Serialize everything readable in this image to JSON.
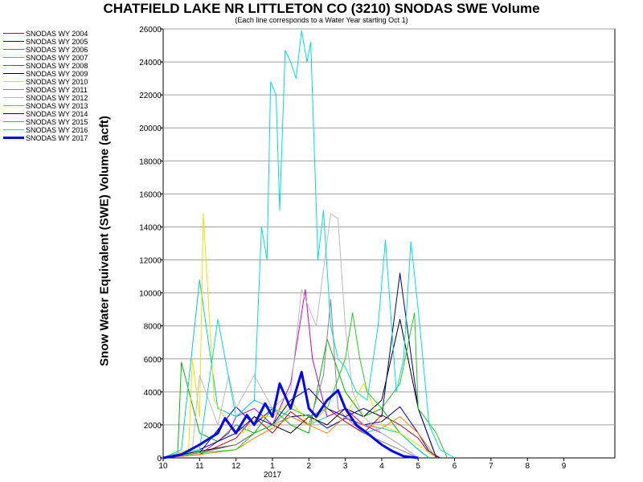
{
  "chart_data": {
    "type": "line",
    "title": "CHATFIELD LAKE NR LITTLETON CO (3210) SNODAS SWE Volume",
    "subtitle": "(Each line corresponds to a Water Year starting Oct 1)",
    "ylabel": "Snow Water Equivalent (SWE) Volume (acft)",
    "xlabel": "",
    "ylim": [
      0,
      26000
    ],
    "y_ticks": [
      0,
      2000,
      4000,
      6000,
      8000,
      10000,
      12000,
      14000,
      16000,
      18000,
      20000,
      22000,
      24000,
      26000
    ],
    "xlim": [
      0,
      12.4
    ],
    "x_ticks": [
      {
        "pos": 0,
        "label": "10"
      },
      {
        "pos": 1,
        "label": "11"
      },
      {
        "pos": 2,
        "label": "12"
      },
      {
        "pos": 3,
        "label": "1"
      },
      {
        "pos": 4,
        "label": "2"
      },
      {
        "pos": 5,
        "label": "3"
      },
      {
        "pos": 6,
        "label": "4"
      },
      {
        "pos": 7,
        "label": "5"
      },
      {
        "pos": 8,
        "label": "6"
      },
      {
        "pos": 9,
        "label": "7"
      },
      {
        "pos": 10,
        "label": "8"
      },
      {
        "pos": 11,
        "label": "9"
      }
    ],
    "x_sublabel": {
      "pos": 3,
      "label": "2017"
    },
    "grid": true,
    "legend_position": "left",
    "series": [
      {
        "name": "SNODAS WY 2004",
        "color": "#cc0000",
        "x": [
          0,
          1,
          2,
          2.5,
          3,
          3.5,
          4,
          4.5,
          5,
          5.5,
          6,
          6.5,
          7,
          7.3,
          7.6
        ],
        "values": [
          0,
          200,
          1200,
          2500,
          1500,
          2800,
          2000,
          3000,
          2200,
          1500,
          2600,
          2000,
          1200,
          300,
          0
        ]
      },
      {
        "name": "SNODAS WY 2005",
        "color": "#0000cc",
        "x": [
          0,
          1,
          2,
          2.5,
          3,
          3.5,
          4,
          4.5,
          5,
          5.5,
          6,
          6.5,
          7,
          7.3,
          7.6
        ],
        "values": [
          0,
          300,
          3100,
          2000,
          3000,
          2500,
          2600,
          1800,
          2400,
          2000,
          2200,
          3100,
          1500,
          400,
          0
        ]
      },
      {
        "name": "SNODAS WY 2006",
        "color": "#00bb00",
        "x": [
          0,
          0.4,
          0.5,
          1,
          1.5,
          2,
          2.5,
          3,
          3.5,
          4,
          4.5,
          5,
          5.5,
          6,
          6.5,
          7,
          7.3
        ],
        "values": [
          0,
          300,
          5800,
          1500,
          1000,
          2000,
          1500,
          3000,
          2000,
          1500,
          7200,
          4000,
          2500,
          3000,
          1500,
          500,
          0
        ]
      },
      {
        "name": "SNODAS WY 2007",
        "color": "#00cccc",
        "x": [
          0,
          0.5,
          1,
          1.5,
          2,
          2.5,
          3,
          3.5,
          4,
          4.5,
          5,
          5.5,
          6,
          6.5,
          7,
          7.3
        ],
        "values": [
          0,
          500,
          10800,
          3000,
          2500,
          3500,
          3000,
          2500,
          2000,
          2500,
          3000,
          1500,
          1800,
          1500,
          500,
          0
        ]
      },
      {
        "name": "SNODAS WY 2008",
        "color": "#cc00cc",
        "x": [
          0,
          1,
          1.8,
          2,
          2.5,
          3,
          3.5,
          3.9,
          4.1,
          4.5,
          5,
          5.5,
          6,
          6.5,
          7
        ],
        "values": [
          0,
          200,
          1500,
          2500,
          3000,
          2000,
          4500,
          10200,
          6000,
          2500,
          3000,
          2000,
          1500,
          800,
          0
        ]
      },
      {
        "name": "SNODAS WY 2009",
        "color": "#000000",
        "x": [
          0,
          1,
          2,
          2.5,
          3,
          3.5,
          4,
          4.5,
          5,
          5.5,
          6,
          6.5,
          7,
          7.5
        ],
        "values": [
          0,
          400,
          800,
          1500,
          2000,
          1500,
          2500,
          2000,
          3000,
          2500,
          3500,
          8400,
          3000,
          0
        ]
      },
      {
        "name": "SNODAS WY 2010",
        "color": "#e6e600",
        "x": [
          0,
          0.7,
          0.8,
          1,
          1.1,
          1.4,
          1.8,
          2.2,
          2.6,
          3,
          3.5,
          4,
          4.5,
          5,
          5.5,
          6,
          6.5,
          7,
          7.5
        ],
        "values": [
          0,
          500,
          6000,
          2500,
          14800,
          3500,
          2000,
          1500,
          2500,
          2500,
          3500,
          2000,
          3000,
          2500,
          4500,
          2000,
          1500,
          800,
          0
        ]
      },
      {
        "name": "SNODAS WY 2011",
        "color": "#888888",
        "x": [
          0,
          1,
          2,
          2.5,
          3,
          3.5,
          4,
          4.4,
          4.6,
          4.8,
          5,
          5.5,
          6,
          6.5,
          7
        ],
        "values": [
          0,
          300,
          800,
          1500,
          2000,
          2500,
          2000,
          5000,
          9600,
          3000,
          2500,
          1500,
          1000,
          500,
          0
        ]
      },
      {
        "name": "SNODAS WY 2012",
        "color": "#bbbbbb",
        "x": [
          0,
          0.8,
          1,
          1.5,
          1.8,
          2,
          2.5,
          3,
          3.5,
          3.8,
          4.2,
          4.6,
          4.8,
          5,
          5.2,
          5.5,
          6,
          6.5,
          7
        ],
        "values": [
          0,
          500,
          5000,
          2000,
          5000,
          3000,
          5000,
          3000,
          4000,
          10200,
          8000,
          14800,
          14500,
          8000,
          4000,
          2500,
          1500,
          800,
          0
        ]
      },
      {
        "name": "SNODAS WY 2013",
        "color": "#ff8800",
        "x": [
          0,
          1,
          2,
          2.5,
          3,
          3.5,
          4,
          4.5,
          5,
          5.5,
          6,
          6.5,
          7,
          7.5
        ],
        "values": [
          0,
          200,
          500,
          1200,
          1800,
          2500,
          2000,
          1500,
          2500,
          2000,
          1800,
          2500,
          1500,
          0
        ]
      },
      {
        "name": "SNODAS WY 2014",
        "color": "#000088",
        "x": [
          0,
          1,
          1.5,
          2,
          2.5,
          3,
          3.5,
          4,
          4.5,
          5,
          5.5,
          6,
          6.5,
          7,
          7.5
        ],
        "values": [
          0,
          500,
          1000,
          1500,
          2500,
          2000,
          3500,
          4200,
          3000,
          2500,
          3000,
          2500,
          11200,
          3000,
          0
        ]
      },
      {
        "name": "SNODAS WY 2015",
        "color": "#22cc22",
        "x": [
          0,
          1,
          2,
          2.5,
          3,
          3.5,
          4,
          4.5,
          5,
          5.2,
          5.4,
          5.6,
          6,
          6.5,
          6.9,
          7,
          7.5,
          7.8
        ],
        "values": [
          0,
          300,
          500,
          1500,
          2000,
          3000,
          2500,
          3000,
          6000,
          8800,
          6000,
          4000,
          3000,
          4500,
          8800,
          3000,
          1500,
          0
        ]
      },
      {
        "name": "SNODAS WY 2016",
        "color": "#00dddd",
        "x": [
          0,
          1,
          1.5,
          2,
          2.5,
          2.7,
          2.85,
          2.95,
          3.1,
          3.2,
          3.35,
          3.5,
          3.65,
          3.8,
          3.95,
          4.05,
          4.25,
          4.4,
          4.6,
          4.8,
          5,
          5.3,
          5.6,
          5.9,
          6.1,
          6.4,
          6.6,
          6.8,
          7,
          7.3,
          7.6,
          8
        ],
        "values": [
          0,
          500,
          8400,
          2500,
          3500,
          14000,
          12000,
          22800,
          22000,
          15000,
          24700,
          24000,
          23000,
          25900,
          24000,
          25200,
          12000,
          15000,
          8000,
          6000,
          5500,
          4000,
          3500,
          8000,
          13200,
          4000,
          6000,
          13100,
          9000,
          2000,
          500,
          0
        ]
      },
      {
        "name": "SNODAS WY 2017",
        "color": "#0000ff",
        "thick": true,
        "x": [
          0,
          0.5,
          1,
          1.5,
          1.7,
          2,
          2.3,
          2.5,
          2.8,
          3,
          3.2,
          3.5,
          3.8,
          4,
          4.2,
          4.5,
          4.8,
          5,
          5.3,
          5.6,
          6,
          6.3,
          6.6,
          7
        ],
        "values": [
          0,
          200,
          800,
          1500,
          2400,
          1500,
          2600,
          2000,
          3300,
          2500,
          4500,
          3000,
          5200,
          3000,
          2500,
          3500,
          4100,
          3000,
          2000,
          1500,
          800,
          400,
          100,
          0
        ]
      }
    ]
  }
}
